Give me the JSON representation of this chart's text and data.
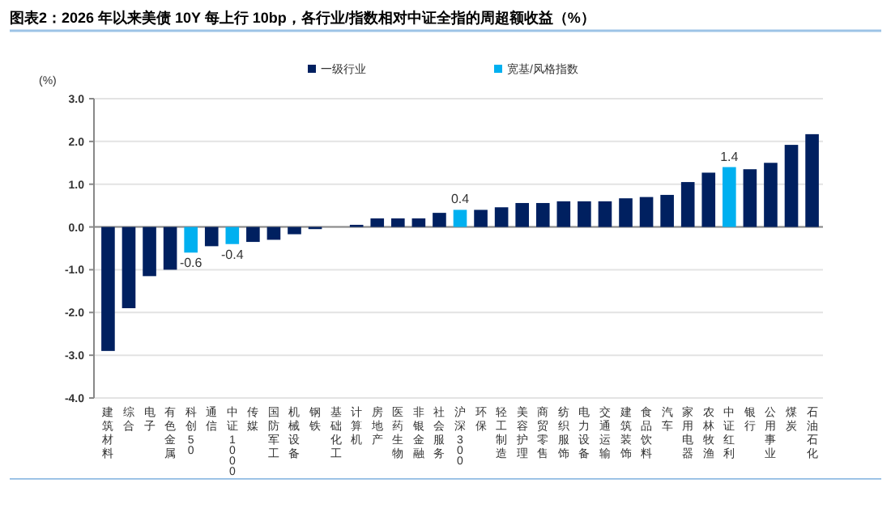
{
  "chart_data": {
    "type": "bar",
    "title": "图表2：2026 年以来美债 10Y 每上行 10bp，各行业/指数相对中证全指的周超额收益（%）",
    "ylabel": "(%)",
    "categories": [
      "建筑材料",
      "综合",
      "电子",
      "有色金属",
      "科创50",
      "通信",
      "中证1000",
      "传媒",
      "国防军工",
      "机械设备",
      "钢铁",
      "基础化工",
      "计算机",
      "房地产",
      "医药生物",
      "非银金融",
      "社会服务",
      "沪深300",
      "环保",
      "轻工制造",
      "美容护理",
      "商贸零售",
      "纺织服饰",
      "电力设备",
      "交通运输",
      "建筑装饰",
      "食品饮料",
      "汽车",
      "家用电器",
      "农林牧渔",
      "中证红利",
      "银行",
      "公用事业",
      "煤炭",
      "石油石化"
    ],
    "series": [
      {
        "name": "一级行业",
        "color": "#002060",
        "values": [
          -2.9,
          -1.9,
          -1.15,
          -1.0,
          null,
          -0.45,
          null,
          -0.35,
          -0.3,
          -0.17,
          -0.05,
          0.0,
          0.05,
          0.2,
          0.2,
          0.2,
          0.33,
          null,
          0.4,
          0.46,
          0.56,
          0.56,
          0.6,
          0.6,
          0.6,
          0.67,
          0.7,
          0.75,
          1.05,
          1.27,
          null,
          1.35,
          1.5,
          1.92,
          2.17
        ]
      },
      {
        "name": "宽基/风格指数",
        "color": "#00b0f0",
        "values": [
          null,
          null,
          null,
          null,
          -0.6,
          null,
          -0.4,
          null,
          null,
          null,
          null,
          null,
          null,
          null,
          null,
          null,
          null,
          0.4,
          null,
          null,
          null,
          null,
          null,
          null,
          null,
          null,
          null,
          null,
          null,
          null,
          1.4,
          null,
          null,
          null,
          null
        ],
        "value_labels": [
          null,
          null,
          null,
          null,
          "-0.6",
          null,
          "-0.4",
          null,
          null,
          null,
          null,
          null,
          null,
          null,
          null,
          null,
          null,
          "0.4",
          null,
          null,
          null,
          null,
          null,
          null,
          null,
          null,
          null,
          null,
          null,
          null,
          "1.4",
          null,
          null,
          null,
          null
        ]
      }
    ],
    "ylim": [
      -4,
      3
    ],
    "yticks": [
      {
        "value": -4,
        "label": "-4.0"
      },
      {
        "value": -3,
        "label": "-3.0"
      },
      {
        "value": -2,
        "label": "-2.0"
      },
      {
        "value": -1,
        "label": "-1.0"
      },
      {
        "value": 0,
        "label": "0.0"
      },
      {
        "value": 1,
        "label": "1.0"
      },
      {
        "value": 2,
        "label": "2.0"
      },
      {
        "value": 3,
        "label": "3.0"
      }
    ],
    "grid": "y",
    "legend": "top"
  }
}
